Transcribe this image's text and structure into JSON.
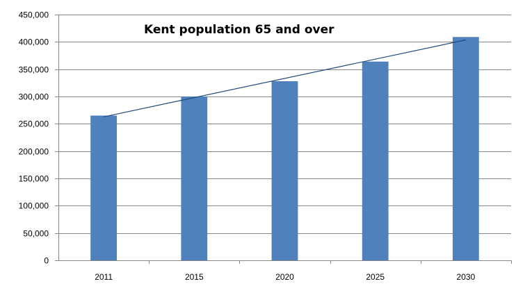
{
  "chart_data": {
    "type": "bar",
    "title": "Kent population 65 and over",
    "categories": [
      "2011",
      "2015",
      "2020",
      "2025",
      "2030"
    ],
    "series": [
      {
        "values": [
          265000,
          300000,
          328000,
          364000,
          409000
        ],
        "color": "#4f81bd"
      }
    ],
    "trendline": {
      "type": "linear",
      "color": "#1f497d"
    },
    "xlabel": "",
    "ylabel": "",
    "ylim": [
      0,
      450000
    ],
    "yticks": [
      "0",
      "50,000",
      "100,000",
      "150,000",
      "200,000",
      "250,000",
      "300,000",
      "350,000",
      "400,000",
      "450,000"
    ],
    "grid": true,
    "legend": "none"
  }
}
